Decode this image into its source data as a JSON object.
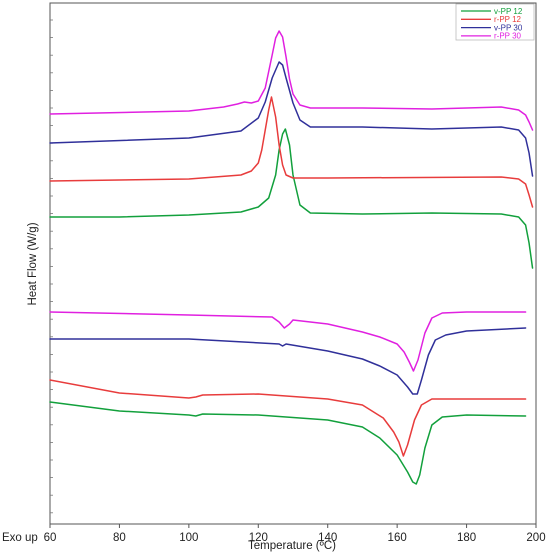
{
  "chart_data": {
    "type": "line",
    "xlabel": "Temperature (ºC)",
    "ylabel": "Heat Flow (W/g)",
    "annotation": "Exo up",
    "xlim": [
      60,
      200
    ],
    "xticks": [
      "60",
      "80",
      "100",
      "120",
      "140",
      "160",
      "180",
      "200"
    ],
    "legend_position": "top-right",
    "series": [
      {
        "name": "v-PP 12",
        "color": "#12a03c",
        "segment": "cooling",
        "x": [
          60,
          80,
          100,
          115,
          120,
          123,
          125,
          126,
          127,
          127.8,
          129,
          130,
          132,
          135,
          150,
          170,
          190,
          195,
          197,
          198,
          199
        ],
        "y": [
          217,
          217,
          215,
          212,
          207,
          198,
          175,
          150,
          134,
          129,
          145,
          175,
          205,
          213,
          214,
          213,
          214,
          217,
          225,
          243,
          268
        ]
      },
      {
        "name": "r-PP 12",
        "color": "#e83c3c",
        "segment": "cooling",
        "x": [
          60,
          100,
          115,
          118,
          120,
          121,
          122,
          123,
          123.8,
          125,
          126,
          127,
          128,
          130,
          140,
          190,
          195,
          197,
          198,
          199
        ],
        "y": [
          181,
          179,
          175,
          171,
          163,
          150,
          130,
          110,
          97,
          117,
          145,
          165,
          175,
          178,
          178,
          177,
          179,
          184,
          195,
          207
        ]
      },
      {
        "name": "v-PP 30",
        "color": "#30309a",
        "segment": "cooling",
        "x": [
          60,
          100,
          115,
          120,
          122,
          124,
          126,
          127,
          128,
          130,
          132,
          135,
          150,
          170,
          190,
          195,
          197,
          198,
          199
        ],
        "y": [
          143,
          138,
          131,
          118,
          102,
          78,
          62,
          65,
          78,
          103,
          120,
          127,
          127,
          129,
          127,
          130,
          138,
          153,
          176
        ]
      },
      {
        "name": "r-PP 30",
        "color": "#e020e0",
        "segment": "cooling",
        "x": [
          60,
          100,
          110,
          114,
          116,
          118,
          120,
          122,
          124,
          125,
          126,
          127,
          128,
          129,
          130,
          132,
          135,
          150,
          170,
          190,
          195,
          197,
          198,
          199
        ],
        "y": [
          114,
          111,
          107,
          104,
          102,
          103,
          101,
          88,
          55,
          38,
          31,
          37,
          57,
          79,
          94,
          105,
          108,
          108,
          109,
          107,
          110,
          115,
          122,
          130
        ]
      },
      {
        "name": "v-PP 12",
        "color": "#12a03c",
        "segment": "heating",
        "x": [
          60,
          80,
          100,
          102,
          104,
          120,
          140,
          150,
          155,
          160,
          163,
          164.5,
          165.5,
          166.5,
          168,
          170,
          173,
          180,
          197
        ],
        "y": [
          402,
          411,
          415,
          416,
          414,
          415,
          420,
          427,
          438,
          455,
          472,
          482,
          484,
          475,
          448,
          425,
          417,
          415,
          416
        ]
      },
      {
        "name": "r-PP 12",
        "color": "#e83c3c",
        "segment": "heating",
        "x": [
          60,
          80,
          100,
          102,
          104,
          120,
          140,
          150,
          156,
          159,
          160.5,
          161.8,
          163,
          165,
          167,
          170,
          180,
          197
        ],
        "y": [
          380,
          393,
          398,
          397,
          395,
          394,
          399,
          405,
          418,
          432,
          442,
          456,
          445,
          420,
          405,
          399,
          399,
          399
        ]
      },
      {
        "name": "v-PP 30",
        "color": "#30309a",
        "segment": "heating",
        "x": [
          60,
          100,
          126,
          127,
          128,
          140,
          150,
          155,
          160,
          163,
          164.5,
          165.8,
          167,
          169,
          171,
          174,
          180,
          197
        ],
        "y": [
          339,
          339,
          344,
          346,
          344,
          351,
          359,
          366,
          375,
          387,
          394,
          394,
          380,
          355,
          340,
          335,
          331,
          328
        ]
      },
      {
        "name": "r-PP 30",
        "color": "#e020e0",
        "segment": "heating",
        "x": [
          60,
          100,
          124,
          126,
          127.5,
          129,
          130,
          140,
          150,
          155,
          160,
          162,
          163.5,
          164.7,
          166,
          168,
          170,
          173,
          180,
          197
        ],
        "y": [
          312,
          315,
          317,
          322,
          328,
          324,
          320,
          324,
          332,
          337,
          344,
          352,
          362,
          371,
          360,
          333,
          318,
          313,
          312,
          312
        ]
      }
    ]
  }
}
